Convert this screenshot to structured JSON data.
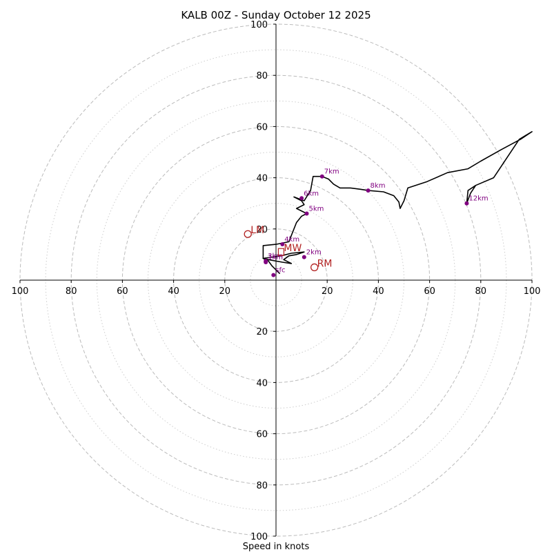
{
  "chart_data": {
    "type": "hodograph",
    "title": "KALB 00Z - Sunday October 12 2025",
    "xlabel": "Speed in knots",
    "ylabel": "",
    "xlim": [
      -100,
      100
    ],
    "ylim": [
      -100,
      100
    ],
    "major_rings": [
      20,
      40,
      60,
      80,
      100
    ],
    "minor_rings": [
      10,
      30,
      50,
      70,
      90
    ],
    "x_ticks": [
      {
        "value": -100,
        "label": "100"
      },
      {
        "value": -80,
        "label": "80"
      },
      {
        "value": -60,
        "label": "60"
      },
      {
        "value": -40,
        "label": "40"
      },
      {
        "value": -20,
        "label": "20"
      },
      {
        "value": 20,
        "label": "20"
      },
      {
        "value": 40,
        "label": "40"
      },
      {
        "value": 60,
        "label": "60"
      },
      {
        "value": 80,
        "label": "80"
      },
      {
        "value": 100,
        "label": "100"
      }
    ],
    "y_ticks": [
      {
        "value": 100,
        "label": "100"
      },
      {
        "value": 80,
        "label": "80"
      },
      {
        "value": 60,
        "label": "60"
      },
      {
        "value": 40,
        "label": "40"
      },
      {
        "value": 20,
        "label": "20"
      },
      {
        "value": -20,
        "label": "20"
      },
      {
        "value": -40,
        "label": "40"
      },
      {
        "value": -60,
        "label": "60"
      },
      {
        "value": -80,
        "label": "80"
      },
      {
        "value": -100,
        "label": "100"
      }
    ],
    "trace": [
      [
        1.5,
        2.5
      ],
      [
        -1.5,
        5.5
      ],
      [
        -3,
        7.5
      ],
      [
        -5,
        8.5
      ],
      [
        -3,
        8
      ],
      [
        2.5,
        7
      ],
      [
        6,
        6.5
      ],
      [
        3,
        8
      ],
      [
        5,
        9.5
      ],
      [
        8,
        10
      ],
      [
        11,
        11
      ],
      [
        6,
        10.5
      ],
      [
        2,
        9.5
      ],
      [
        -5,
        8.5
      ],
      [
        -5,
        13.5
      ],
      [
        0,
        14
      ],
      [
        5,
        15
      ],
      [
        7,
        20
      ],
      [
        8,
        22.5
      ],
      [
        10,
        25
      ],
      [
        12,
        26
      ],
      [
        8,
        28
      ],
      [
        11,
        29.5
      ],
      [
        10,
        31
      ],
      [
        7,
        32.5
      ],
      [
        11,
        31
      ],
      [
        13.5,
        35
      ],
      [
        14.5,
        40.5
      ],
      [
        18,
        40.5
      ],
      [
        20.5,
        39.5
      ],
      [
        22.5,
        37.5
      ],
      [
        25,
        36
      ],
      [
        29,
        36
      ],
      [
        33,
        35.5
      ],
      [
        36,
        35
      ],
      [
        42,
        34.5
      ],
      [
        46,
        33
      ],
      [
        48,
        30.5
      ],
      [
        48.5,
        28
      ],
      [
        50,
        31
      ],
      [
        51.5,
        36
      ],
      [
        59,
        38.5
      ],
      [
        67,
        42
      ],
      [
        75,
        43.5
      ],
      [
        80,
        46.5
      ],
      [
        88,
        51
      ],
      [
        95.5,
        55
      ],
      [
        100,
        58
      ],
      [
        95,
        55
      ],
      [
        85,
        40
      ],
      [
        78,
        37
      ],
      [
        76,
        34
      ],
      [
        74.5,
        30
      ],
      [
        75,
        35
      ],
      [
        78,
        37
      ]
    ],
    "height_markers": [
      {
        "label": "3km",
        "u": -4,
        "v": 7.5
      },
      {
        "label": "1km",
        "u": -4,
        "v": 7
      },
      {
        "label": "2km",
        "u": 11,
        "v": 9
      },
      {
        "label": "4km",
        "u": 2.5,
        "v": 14
      },
      {
        "label": "5km",
        "u": 12,
        "v": 26
      },
      {
        "label": "6km",
        "u": 10,
        "v": 32
      },
      {
        "label": "7km",
        "u": 18,
        "v": 40.5
      },
      {
        "label": "8km",
        "u": 36,
        "v": 35
      },
      {
        "label": "12km",
        "u": 74.5,
        "v": 30
      },
      {
        "label": "sfc",
        "u": -1,
        "v": 2
      }
    ],
    "storm_motions": [
      {
        "label": "LM",
        "u": -11,
        "v": 18,
        "marker": "circle"
      },
      {
        "label": "RM",
        "u": 15,
        "v": 5,
        "marker": "circle"
      },
      {
        "label": "MW",
        "u": 2,
        "v": 11,
        "marker": "square"
      }
    ],
    "colors": {
      "trace": "#000000",
      "height_markers": "#800080",
      "storm_motion": "#b22222",
      "grid": "#bbbbbb",
      "axes": "#000000"
    }
  }
}
